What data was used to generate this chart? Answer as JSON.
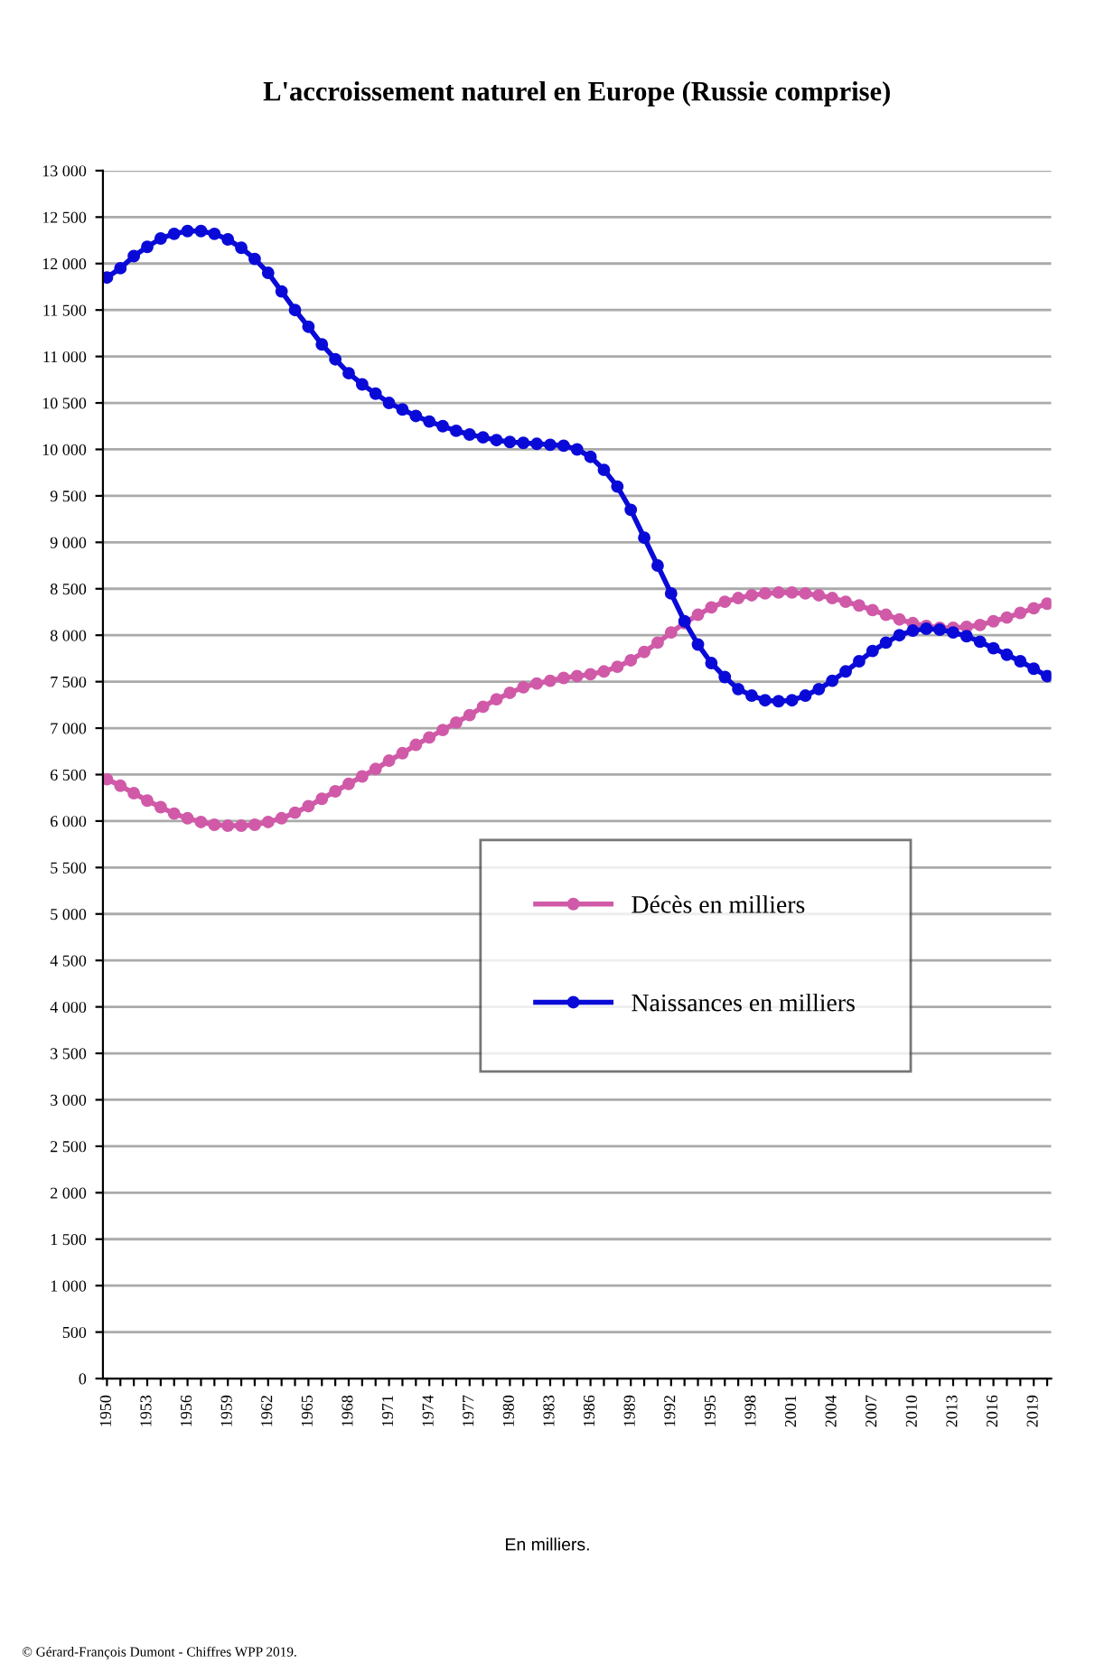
{
  "chart_data": {
    "type": "line",
    "title": "L'accroissement naturel en Europe (Russie comprise)",
    "categories": [
      "1950",
      null,
      null,
      "1953",
      null,
      null,
      "1956",
      null,
      null,
      "1959",
      null,
      null,
      "1962",
      null,
      null,
      "1965",
      null,
      null,
      "1968",
      null,
      null,
      "1971",
      null,
      null,
      "1974",
      null,
      null,
      "1977",
      null,
      null,
      "1980",
      null,
      null,
      "1983",
      null,
      null,
      "1986",
      null,
      null,
      "1989",
      null,
      null,
      "1992",
      null,
      null,
      "1995",
      null,
      null,
      "1998",
      null,
      null,
      "2001",
      null,
      null,
      "2004",
      null,
      null,
      "2007",
      null,
      null,
      "2010",
      null,
      null,
      "2013",
      null,
      null,
      "2016",
      null,
      null,
      "2019",
      null
    ],
    "series": [
      {
        "name": "Décès en milliers",
        "color": "#d05aa8",
        "values": [
          6450,
          6380,
          6300,
          6220,
          6150,
          6080,
          6030,
          5990,
          5960,
          5950,
          5950,
          5960,
          5990,
          6030,
          6090,
          6160,
          6240,
          6320,
          6400,
          6480,
          6560,
          6650,
          6730,
          6820,
          6900,
          6980,
          7060,
          7140,
          7230,
          7310,
          7380,
          7440,
          7480,
          7510,
          7540,
          7560,
          7580,
          7610,
          7660,
          7730,
          7820,
          7920,
          8030,
          8130,
          8220,
          8300,
          8360,
          8400,
          8430,
          8450,
          8460,
          8460,
          8450,
          8430,
          8400,
          8360,
          8320,
          8270,
          8220,
          8170,
          8130,
          8100,
          8080,
          8080,
          8090,
          8110,
          8150,
          8190,
          8240,
          8290,
          8340
        ]
      },
      {
        "name": "Naissances en milliers",
        "color": "#0a0ad8",
        "values": [
          11850,
          11950,
          12080,
          12180,
          12270,
          12320,
          12350,
          12350,
          12320,
          12260,
          12170,
          12050,
          11900,
          11700,
          11500,
          11320,
          11130,
          10970,
          10820,
          10700,
          10600,
          10500,
          10430,
          10360,
          10300,
          10250,
          10200,
          10160,
          10130,
          10100,
          10080,
          10070,
          10060,
          10050,
          10040,
          10000,
          9920,
          9780,
          9600,
          9350,
          9050,
          8750,
          8450,
          8150,
          7900,
          7700,
          7550,
          7420,
          7350,
          7300,
          7290,
          7300,
          7350,
          7420,
          7510,
          7610,
          7720,
          7830,
          7920,
          8000,
          8050,
          8070,
          8060,
          8030,
          7990,
          7930,
          7860,
          7790,
          7720,
          7640,
          7560
        ]
      }
    ],
    "ylim": [
      0,
      13000
    ],
    "yticks": [
      0,
      500,
      {
        "value": 1000,
        "label": "1 000"
      },
      {
        "value": 1500,
        "label": "1 500"
      },
      {
        "value": 2000,
        "label": "2 000"
      },
      {
        "value": 2500,
        "label": "2 500"
      },
      {
        "value": 3000,
        "label": "3 000"
      },
      {
        "value": 3500,
        "label": "3 500"
      },
      {
        "value": 4000,
        "label": "4 000"
      },
      {
        "value": 4500,
        "label": "4 500"
      },
      {
        "value": 5000,
        "label": "5 000"
      },
      {
        "value": 5500,
        "label": "5 500"
      },
      {
        "value": 6000,
        "label": "6 000"
      },
      {
        "value": 6500,
        "label": "6 500"
      },
      {
        "value": 7000,
        "label": "7 000"
      },
      {
        "value": 7500,
        "label": "7 500"
      },
      {
        "value": 8000,
        "label": "8 000"
      },
      {
        "value": 8500,
        "label": "8 500"
      },
      {
        "value": 9000,
        "label": "9 000"
      },
      {
        "value": 9500,
        "label": "9 500"
      },
      {
        "value": 10000,
        "label": "10 000"
      },
      {
        "value": 10500,
        "label": "10 500"
      },
      {
        "value": 11000,
        "label": "11 000"
      },
      {
        "value": 11500,
        "label": "11 500"
      },
      {
        "value": 12000,
        "label": "12 000"
      },
      {
        "value": 12500,
        "label": "12 500"
      },
      {
        "value": 13000,
        "label": "13 000"
      }
    ],
    "grid": "y",
    "legend": "center",
    "marker": "circle",
    "line_style": "solid",
    "annotations": [
      "En milliers.",
      "© Gérard-François Dumont - Chiffres WPP 2019."
    ]
  }
}
